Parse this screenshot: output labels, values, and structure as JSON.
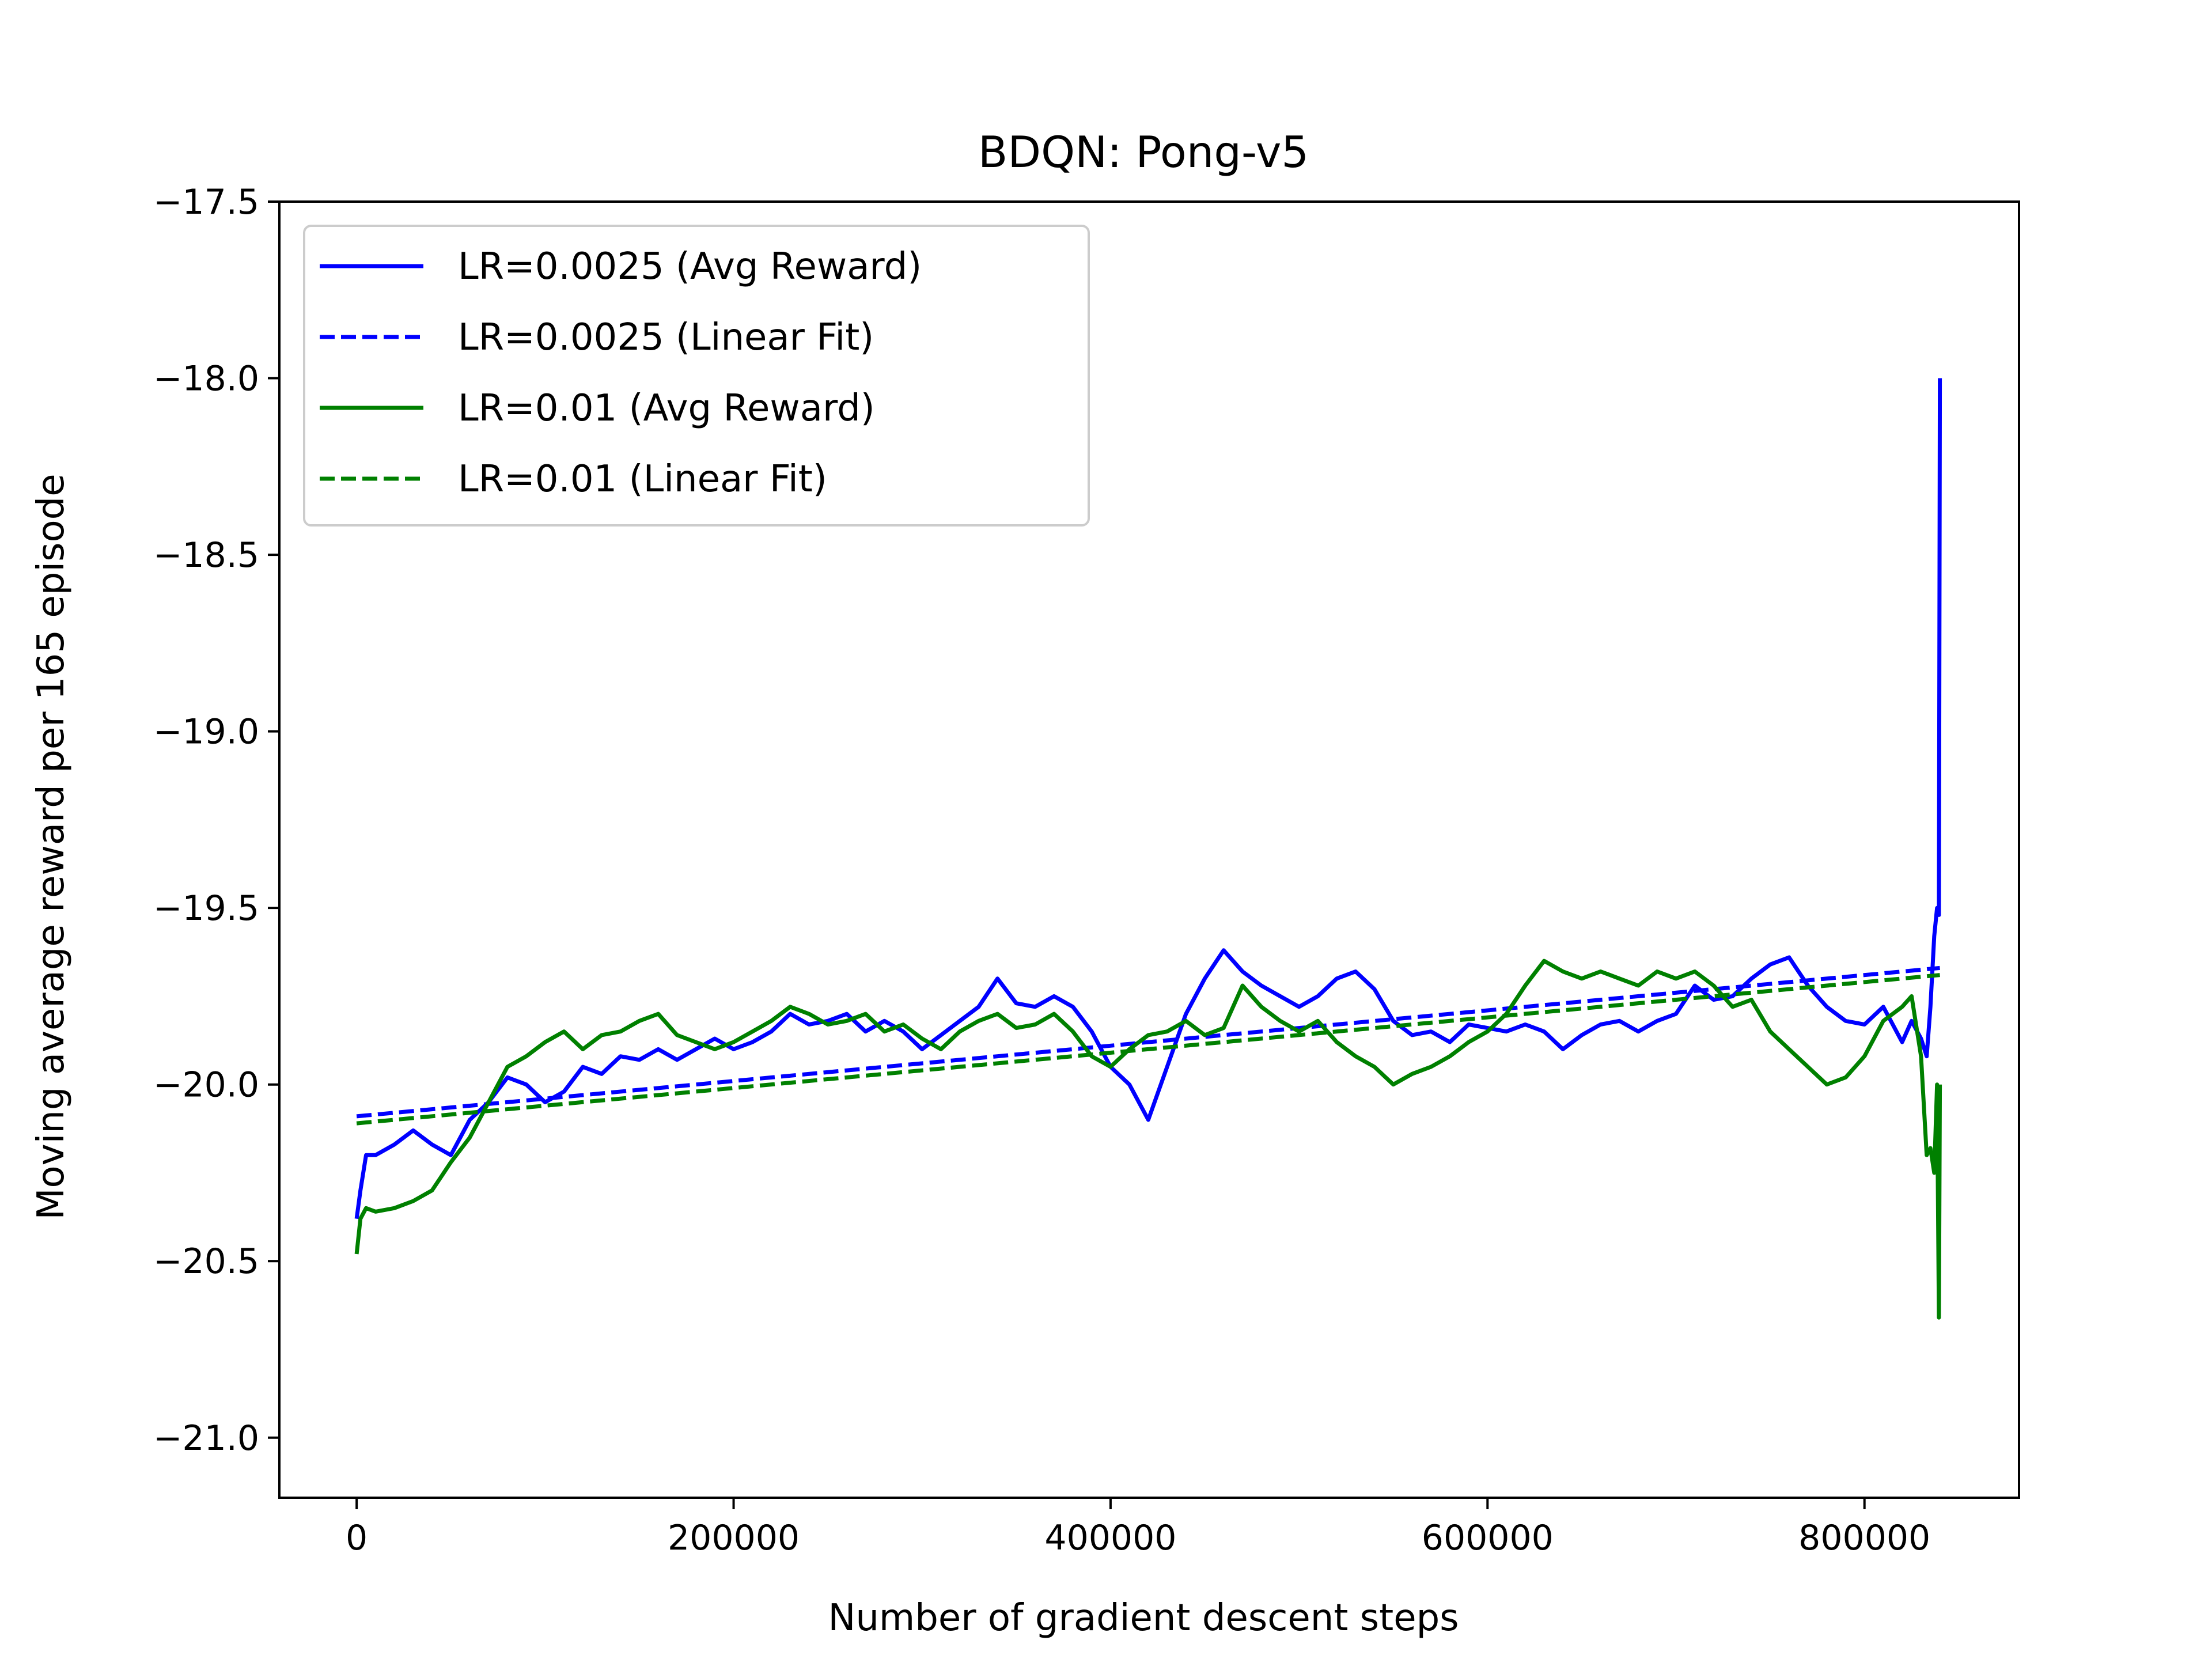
{
  "chart_data": {
    "type": "line",
    "title": "BDQN: Pong-v5",
    "xlabel": "Number of gradient descent steps",
    "ylabel": "Moving average reward per 165 episode",
    "xlim": [
      -41000,
      882000
    ],
    "ylim": [
      -21.17,
      -17.5
    ],
    "x_ticks": [
      0,
      200000,
      400000,
      600000,
      800000
    ],
    "y_ticks": [
      -21.0,
      -20.5,
      -20.0,
      -19.5,
      -19.0,
      -18.5,
      -18.0,
      -17.5
    ],
    "grid": false,
    "legend_position": "top-left",
    "series": [
      {
        "name": "LR=0.0025 (Avg Reward)",
        "color": "#0000ff",
        "style": "solid",
        "x": [
          0,
          2000,
          5000,
          10000,
          20000,
          30000,
          40000,
          50000,
          60000,
          70000,
          80000,
          90000,
          100000,
          110000,
          120000,
          130000,
          140000,
          150000,
          160000,
          170000,
          180000,
          190000,
          200000,
          210000,
          220000,
          230000,
          240000,
          250000,
          260000,
          270000,
          280000,
          290000,
          300000,
          310000,
          320000,
          330000,
          340000,
          350000,
          360000,
          370000,
          380000,
          390000,
          400000,
          410000,
          420000,
          430000,
          440000,
          450000,
          460000,
          470000,
          480000,
          490000,
          500000,
          510000,
          520000,
          530000,
          540000,
          550000,
          560000,
          570000,
          580000,
          590000,
          600000,
          610000,
          620000,
          630000,
          640000,
          650000,
          660000,
          670000,
          680000,
          690000,
          700000,
          710000,
          720000,
          730000,
          740000,
          750000,
          760000,
          770000,
          780000,
          790000,
          800000,
          810000,
          820000,
          825000,
          830000,
          833000,
          835000,
          837000,
          838500,
          839500,
          840000
        ],
        "y": [
          -20.38,
          -20.3,
          -20.2,
          -20.2,
          -20.17,
          -20.13,
          -20.17,
          -20.2,
          -20.1,
          -20.05,
          -19.98,
          -20.0,
          -20.05,
          -20.02,
          -19.95,
          -19.97,
          -19.92,
          -19.93,
          -19.9,
          -19.93,
          -19.9,
          -19.87,
          -19.9,
          -19.88,
          -19.85,
          -19.8,
          -19.83,
          -19.82,
          -19.8,
          -19.85,
          -19.82,
          -19.85,
          -19.9,
          -19.86,
          -19.82,
          -19.78,
          -19.7,
          -19.77,
          -19.78,
          -19.75,
          -19.78,
          -19.85,
          -19.95,
          -20.0,
          -20.1,
          -19.95,
          -19.8,
          -19.7,
          -19.62,
          -19.68,
          -19.72,
          -19.75,
          -19.78,
          -19.75,
          -19.7,
          -19.68,
          -19.73,
          -19.82,
          -19.86,
          -19.85,
          -19.88,
          -19.83,
          -19.84,
          -19.85,
          -19.83,
          -19.85,
          -19.9,
          -19.86,
          -19.83,
          -19.82,
          -19.85,
          -19.82,
          -19.8,
          -19.72,
          -19.76,
          -19.75,
          -19.7,
          -19.66,
          -19.64,
          -19.72,
          -19.78,
          -19.82,
          -19.83,
          -19.78,
          -19.88,
          -19.82,
          -19.87,
          -19.92,
          -19.78,
          -19.58,
          -19.5,
          -19.52,
          -18.0
        ]
      },
      {
        "name": "LR=0.0025 (Linear Fit)",
        "color": "#0000ff",
        "style": "dashed",
        "x": [
          0,
          840000
        ],
        "y": [
          -20.09,
          -19.67
        ]
      },
      {
        "name": "LR=0.01 (Avg Reward)",
        "color": "#008000",
        "style": "solid",
        "x": [
          0,
          2000,
          5000,
          10000,
          20000,
          30000,
          40000,
          50000,
          60000,
          70000,
          80000,
          90000,
          100000,
          110000,
          120000,
          130000,
          140000,
          150000,
          160000,
          170000,
          180000,
          190000,
          200000,
          210000,
          220000,
          230000,
          240000,
          250000,
          260000,
          270000,
          280000,
          290000,
          300000,
          310000,
          320000,
          330000,
          340000,
          350000,
          360000,
          370000,
          380000,
          390000,
          400000,
          410000,
          420000,
          430000,
          440000,
          450000,
          460000,
          470000,
          480000,
          490000,
          500000,
          510000,
          520000,
          530000,
          540000,
          550000,
          560000,
          570000,
          580000,
          590000,
          600000,
          610000,
          620000,
          630000,
          640000,
          650000,
          660000,
          670000,
          680000,
          690000,
          700000,
          710000,
          720000,
          730000,
          740000,
          750000,
          760000,
          770000,
          780000,
          790000,
          800000,
          810000,
          820000,
          825000,
          830000,
          833000,
          835000,
          837000,
          838500,
          839500,
          840000
        ],
        "y": [
          -20.48,
          -20.38,
          -20.35,
          -20.36,
          -20.35,
          -20.33,
          -20.3,
          -20.22,
          -20.15,
          -20.05,
          -19.95,
          -19.92,
          -19.88,
          -19.85,
          -19.9,
          -19.86,
          -19.85,
          -19.82,
          -19.8,
          -19.86,
          -19.88,
          -19.9,
          -19.88,
          -19.85,
          -19.82,
          -19.78,
          -19.8,
          -19.83,
          -19.82,
          -19.8,
          -19.85,
          -19.83,
          -19.87,
          -19.9,
          -19.85,
          -19.82,
          -19.8,
          -19.84,
          -19.83,
          -19.8,
          -19.85,
          -19.92,
          -19.95,
          -19.9,
          -19.86,
          -19.85,
          -19.82,
          -19.86,
          -19.84,
          -19.72,
          -19.78,
          -19.82,
          -19.85,
          -19.82,
          -19.88,
          -19.92,
          -19.95,
          -20.0,
          -19.97,
          -19.95,
          -19.92,
          -19.88,
          -19.85,
          -19.8,
          -19.72,
          -19.65,
          -19.68,
          -19.7,
          -19.68,
          -19.7,
          -19.72,
          -19.68,
          -19.7,
          -19.68,
          -19.72,
          -19.78,
          -19.76,
          -19.85,
          -19.9,
          -19.95,
          -20.0,
          -19.98,
          -19.92,
          -19.82,
          -19.78,
          -19.75,
          -19.92,
          -20.2,
          -20.18,
          -20.25,
          -20.0,
          -20.66,
          -20.0
        ]
      },
      {
        "name": "LR=0.01 (Linear Fit)",
        "color": "#008000",
        "style": "dashed",
        "x": [
          0,
          840000
        ],
        "y": [
          -20.11,
          -19.69
        ]
      }
    ]
  }
}
